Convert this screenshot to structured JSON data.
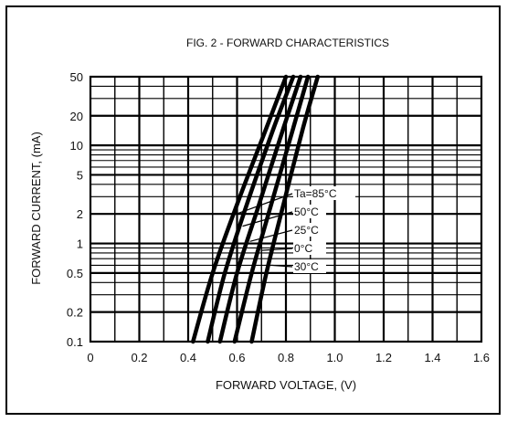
{
  "chart_data": {
    "type": "line",
    "title": "FIG. 2 - FORWARD CHARACTERISTICS",
    "xlabel": "FORWARD  VOLTAGE, (V)",
    "ylabel": "FORWARD  CURRENT, (mA)",
    "xlim": [
      0,
      1.6
    ],
    "ylim": [
      0.1,
      50
    ],
    "y_scale": "log",
    "grid": true,
    "x_ticks": [
      0,
      0.2,
      0.4,
      0.6,
      0.8,
      1.0,
      1.2,
      1.4,
      1.6
    ],
    "x_tick_labels": [
      "0",
      "0.2",
      "0.4",
      "0.6",
      "0.8",
      "1.0",
      "1.2",
      "1.4",
      "1.6"
    ],
    "y_ticks": [
      0.1,
      0.2,
      0.5,
      1,
      2,
      5,
      10,
      20,
      50
    ],
    "y_tick_labels": [
      "0.1",
      "0.2",
      "0.5",
      "1",
      "2",
      "5",
      "10",
      "20",
      "50"
    ],
    "series": [
      {
        "name": "Ta=85°C",
        "x": [
          0.42,
          0.5,
          0.6,
          0.72,
          0.8
        ],
        "y": [
          0.1,
          0.5,
          2.5,
          15,
          50
        ]
      },
      {
        "name": "50°C",
        "x": [
          0.48,
          0.55,
          0.64,
          0.75,
          0.83
        ],
        "y": [
          0.1,
          0.5,
          2.5,
          15,
          50
        ]
      },
      {
        "name": "25°C",
        "x": [
          0.53,
          0.6,
          0.69,
          0.79,
          0.86
        ],
        "y": [
          0.1,
          0.5,
          2.5,
          15,
          50
        ]
      },
      {
        "name": "0°C",
        "x": [
          0.59,
          0.66,
          0.74,
          0.83,
          0.89
        ],
        "y": [
          0.1,
          0.5,
          2.5,
          15,
          50
        ]
      },
      {
        "name": "30°C",
        "x": [
          0.66,
          0.72,
          0.79,
          0.87,
          0.93
        ],
        "y": [
          0.1,
          0.5,
          2.5,
          15,
          50
        ]
      }
    ],
    "labels_text": [
      "Ta=85°C",
      "50°C",
      "25°C",
      "0°C",
      "30°C"
    ],
    "label_anchors": [
      {
        "series": 0,
        "at_y": 2.0
      },
      {
        "series": 1,
        "at_y": 1.5
      },
      {
        "series": 2,
        "at_y": 1.05
      },
      {
        "series": 3,
        "at_y": 0.85
      },
      {
        "series": 4,
        "at_y": 0.6
      }
    ]
  },
  "colors": {
    "line": "#000000",
    "grid": "#000000",
    "background": "#ffffff"
  }
}
